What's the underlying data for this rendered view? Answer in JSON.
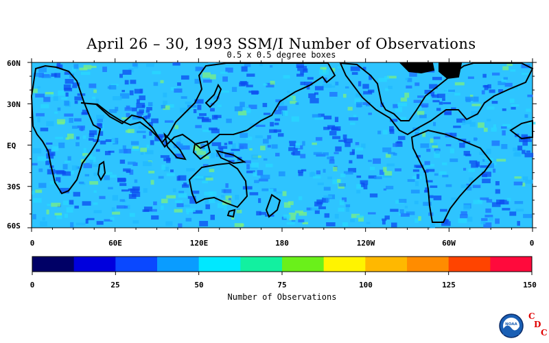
{
  "title": "April 26 – 30, 1993 SSM/I Number of Observations",
  "subtitle": "0.5 x 0.5 degree boxes",
  "lat_labels": [
    "60N",
    "30N",
    "EQ",
    "30S",
    "60S"
  ],
  "lon_labels": [
    "0",
    "60E",
    "120E",
    "180",
    "120W",
    "60W",
    "0"
  ],
  "colorbar": {
    "title": "Number of Observations",
    "tick_labels": [
      "0",
      "25",
      "50",
      "75",
      "100",
      "125",
      "150"
    ],
    "colors": [
      "#000066",
      "#0000dd",
      "#0a48ff",
      "#0a9cff",
      "#00e8ff",
      "#12f0a0",
      "#6af01a",
      "#fff400",
      "#ffb800",
      "#ff8c00",
      "#ff4400",
      "#ff0a3c"
    ],
    "range": [
      0,
      150
    ]
  },
  "logo": {
    "text": "NOAA",
    "letters": [
      "C",
      "D",
      "C"
    ]
  }
}
